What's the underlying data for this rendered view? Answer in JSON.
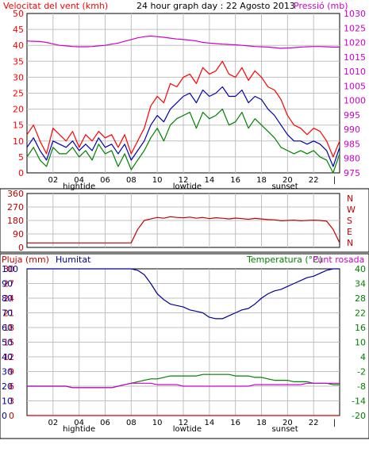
{
  "header": {
    "wind_title": "Velocitat del vent (kmh)",
    "graph_title": "24 hour graph day : 22 Agosto 2013",
    "pressure_title": "Pressió (mb)"
  },
  "colors": {
    "wind_max": "#ff0000",
    "wind_avg": "#0000b0",
    "wind_min": "#008000",
    "pressure": "#cc00cc",
    "direction": "#c00000",
    "rain": "#cc0000",
    "humidity": "#000099",
    "temperature": "#008000",
    "dewpoint": "#cc00cc",
    "grid": "#c0c0c0"
  },
  "x_axis": {
    "tick_labels": [
      "02",
      "04",
      "06",
      "08",
      "10",
      "12",
      "14",
      "16",
      "18",
      "20",
      "22",
      "|"
    ],
    "annotations": [
      "hightide",
      "lowtide",
      "sunset"
    ]
  },
  "middle_panel": {
    "left_ticks": [
      "360",
      "270",
      "180",
      "90",
      "0"
    ],
    "right_labels": [
      "N",
      "W",
      "S",
      "E",
      "N"
    ]
  },
  "bottom_panel": {
    "label_rain": "Pluja (mm)",
    "label_humidity": "Humitat",
    "label_temperature": "Temperatura (°C)",
    "label_dewpoint": "Punt rosada",
    "left_rain_ticks": [
      "30",
      "27",
      "24",
      "21",
      "18",
      "15",
      "12",
      "9",
      "6",
      "3",
      "0"
    ],
    "left_humidity_ticks": [
      "100",
      "90",
      "80",
      "70",
      "60",
      "50",
      "40",
      "30",
      "20",
      "10",
      "0"
    ],
    "right_temp_ticks": [
      "40",
      "34",
      "28",
      "22",
      "16",
      "10",
      "4",
      "-2",
      "-8",
      "-14",
      "-20"
    ]
  },
  "chart_data": [
    {
      "type": "line",
      "x": [
        0,
        0.5,
        1,
        1.5,
        2,
        2.5,
        3,
        3.5,
        4,
        4.5,
        5,
        5.5,
        6,
        6.5,
        7,
        7.5,
        8,
        8.5,
        9,
        9.5,
        10,
        10.5,
        11,
        11.5,
        12,
        12.5,
        13,
        13.5,
        14,
        14.5,
        15,
        15.5,
        16,
        16.5,
        17,
        17.5,
        18,
        18.5,
        19,
        19.5,
        20,
        20.5,
        21,
        21.5,
        22,
        22.5,
        23,
        23.5,
        24
      ],
      "left_axis_ticks": [
        "50",
        "45",
        "40",
        "35",
        "30",
        "25",
        "20",
        "15",
        "10",
        "5",
        "0"
      ],
      "right_axis_ticks": [
        "1030",
        "1025",
        "1020",
        "1015",
        "1010",
        "1005",
        "1000",
        "995",
        "990",
        "985",
        "980",
        "975"
      ],
      "ylim_left": [
        0,
        50
      ],
      "ylim_right": [
        975,
        1030
      ],
      "series": [
        {
          "values": [
            12,
            15,
            10,
            6,
            14,
            12,
            10,
            13,
            8,
            12,
            10,
            13,
            11,
            12,
            8,
            12,
            6,
            10,
            14,
            21,
            24,
            22,
            28,
            27,
            30,
            31,
            28,
            33,
            31,
            32,
            35,
            31,
            30,
            33,
            29,
            32,
            30,
            27,
            26,
            23,
            18,
            15,
            14,
            12,
            14,
            13,
            10,
            5,
            10
          ]
        },
        {
          "values": [
            8,
            11,
            7,
            4,
            10,
            9,
            8,
            10,
            7,
            9,
            7,
            11,
            8,
            9,
            6,
            9,
            4,
            7,
            10,
            15,
            18,
            16,
            20,
            22,
            24,
            25,
            22,
            26,
            24,
            25,
            27,
            24,
            24,
            26,
            22,
            24,
            23,
            20,
            18,
            15,
            12,
            10,
            10,
            9,
            10,
            9,
            7,
            2,
            8
          ]
        },
        {
          "values": [
            5,
            8,
            4,
            2,
            8,
            6,
            6,
            8,
            5,
            7,
            4,
            9,
            6,
            7,
            2,
            6,
            1,
            4,
            7,
            11,
            14,
            10,
            15,
            17,
            18,
            19,
            14,
            19,
            17,
            18,
            20,
            15,
            16,
            19,
            14,
            17,
            15,
            13,
            11,
            8,
            7,
            6,
            7,
            6,
            7,
            5,
            4,
            0,
            6
          ]
        },
        {
          "values": [
            1020.5,
            1020.4,
            1020.3,
            1020.0,
            1019.5,
            1019.0,
            1018.8,
            1018.6,
            1018.5,
            1018.5,
            1018.6,
            1018.8,
            1019.0,
            1019.4,
            1019.8,
            1020.4,
            1021.0,
            1021.6,
            1022.0,
            1022.2,
            1022.0,
            1021.8,
            1021.5,
            1021.2,
            1021.0,
            1020.8,
            1020.5,
            1020.0,
            1019.8,
            1019.6,
            1019.4,
            1019.3,
            1019.2,
            1019.0,
            1018.8,
            1018.6,
            1018.5,
            1018.4,
            1018.2,
            1018.0,
            1018.1,
            1018.2,
            1018.4,
            1018.5,
            1018.6,
            1018.6,
            1018.5,
            1018.4,
            1018.4
          ]
        }
      ]
    },
    {
      "type": "line",
      "x": [
        0,
        0.5,
        1,
        1.5,
        2,
        2.5,
        3,
        3.5,
        4,
        4.5,
        5,
        5.5,
        6,
        6.5,
        7,
        7.5,
        8,
        8.5,
        9,
        9.5,
        10,
        10.5,
        11,
        11.5,
        12,
        12.5,
        13,
        13.5,
        14,
        14.5,
        15,
        15.5,
        16,
        16.5,
        17,
        17.5,
        18,
        18.5,
        19,
        19.5,
        20,
        20.5,
        21,
        21.5,
        22,
        22.5,
        23,
        23.5,
        24
      ],
      "ylim": [
        0,
        360
      ],
      "series": [
        {
          "values": [
            30,
            30,
            30,
            30,
            30,
            30,
            30,
            30,
            30,
            30,
            30,
            30,
            30,
            30,
            30,
            30,
            30,
            120,
            180,
            190,
            200,
            195,
            205,
            200,
            198,
            202,
            195,
            200,
            192,
            198,
            195,
            190,
            196,
            192,
            188,
            194,
            190,
            186,
            184,
            178,
            180,
            182,
            178,
            180,
            182,
            180,
            175,
            120,
            30
          ]
        }
      ]
    },
    {
      "type": "line",
      "x": [
        0,
        0.5,
        1,
        1.5,
        2,
        2.5,
        3,
        3.5,
        4,
        4.5,
        5,
        5.5,
        6,
        6.5,
        7,
        7.5,
        8,
        8.5,
        9,
        9.5,
        10,
        10.5,
        11,
        11.5,
        12,
        12.5,
        13,
        13.5,
        14,
        14.5,
        15,
        15.5,
        16,
        16.5,
        17,
        17.5,
        18,
        18.5,
        19,
        19.5,
        20,
        20.5,
        21,
        21.5,
        22,
        22.5,
        23,
        23.5,
        24
      ],
      "ylim": [
        0,
        100
      ],
      "series": [
        {
          "values": [
            0,
            0,
            0,
            0,
            0,
            0,
            0,
            0,
            0,
            0,
            0,
            0,
            0,
            0,
            0,
            0,
            0,
            0,
            0,
            0,
            0,
            0,
            0,
            0,
            0,
            0,
            0,
            0,
            0,
            0,
            0,
            0,
            0,
            0,
            0,
            0,
            0,
            0,
            0,
            0,
            0,
            0,
            0,
            0,
            0,
            0,
            0,
            0,
            0
          ]
        },
        {
          "values": [
            100,
            100,
            100,
            100,
            100,
            100,
            100,
            100,
            100,
            100,
            100,
            100,
            100,
            100,
            100,
            100,
            100,
            99,
            96,
            90,
            83,
            79,
            76,
            75,
            74,
            72,
            71,
            70,
            67,
            66,
            66,
            68,
            70,
            72,
            73,
            76,
            80,
            83,
            85,
            86,
            88,
            90,
            92,
            94,
            95,
            97,
            99,
            100,
            100
          ]
        },
        {
          "values": [
            20,
            20,
            20,
            20,
            20,
            20,
            20,
            19,
            19,
            19,
            19,
            19,
            19,
            19,
            20,
            21,
            22,
            23,
            24,
            25,
            25,
            26,
            27,
            27,
            27,
            27,
            27,
            28,
            28,
            28,
            28,
            28,
            27,
            27,
            27,
            26,
            26,
            25,
            24,
            24,
            24,
            23,
            23,
            23,
            22,
            22,
            22,
            21,
            21
          ]
        },
        {
          "values": [
            20,
            20,
            20,
            20,
            20,
            20,
            20,
            19,
            19,
            19,
            19,
            19,
            19,
            19,
            20,
            21,
            22,
            22,
            22,
            22,
            21,
            21,
            21,
            21,
            20,
            20,
            20,
            20,
            20,
            20,
            20,
            20,
            20,
            20,
            20,
            21,
            21,
            21,
            21,
            21,
            21,
            21,
            21,
            22,
            22,
            22,
            22,
            22,
            22
          ]
        }
      ]
    }
  ]
}
